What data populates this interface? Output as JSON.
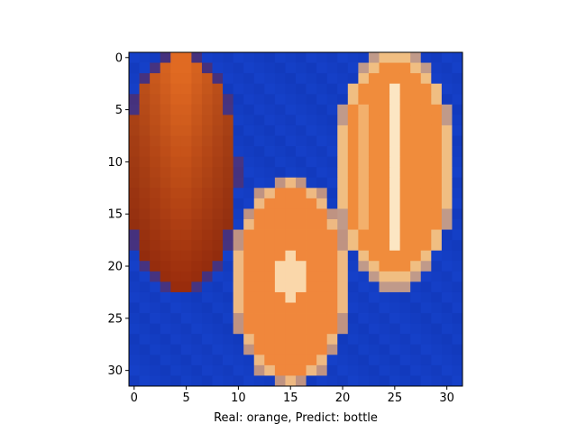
{
  "image": {
    "rows": 32,
    "cols": 32,
    "description_colors": {
      "background": "#1540c8",
      "orange": "#f08a3a",
      "dark_orange": "#c84a10",
      "peel": "#f2c58a",
      "pith": "#fff0d0"
    }
  },
  "axes": {
    "x_ticks": [
      "0",
      "5",
      "10",
      "15",
      "20",
      "25",
      "30"
    ],
    "y_ticks": [
      "0",
      "5",
      "10",
      "15",
      "20",
      "25",
      "30"
    ],
    "xlabel": "Real: orange, Predict: bottle"
  }
}
